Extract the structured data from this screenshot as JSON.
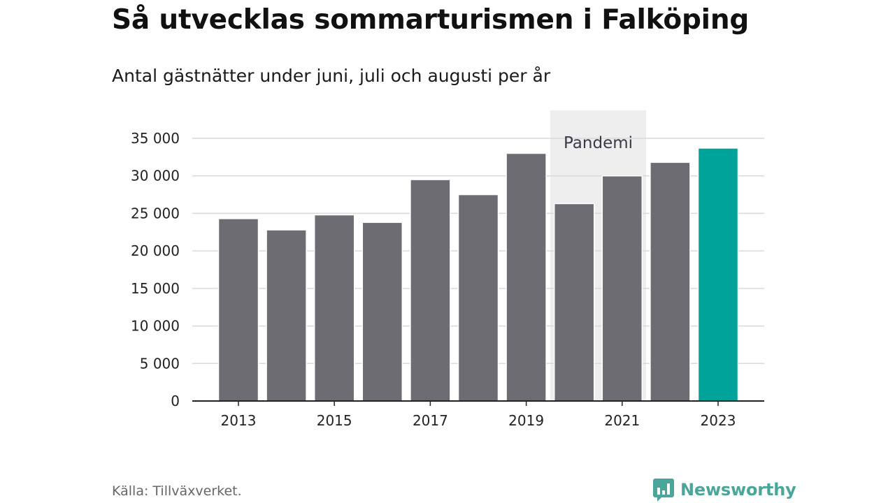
{
  "header": {
    "title": "Så utvecklas sommarturismen i Falköping",
    "subtitle": "Antal gästnätter under juni, juli och augusti per år"
  },
  "footer": {
    "source": "Källa: Tillväxverket.",
    "brand": "Newsworthy"
  },
  "colors": {
    "bar": "#6d6c72",
    "highlight_bar": "#00a39a",
    "shade": "#eeeeee",
    "brand": "#4aa59a"
  },
  "icons": {
    "logo": "speech-bubble-bar-chart-icon"
  },
  "chart_data": {
    "type": "bar",
    "categories": [
      "2013",
      "2014",
      "2015",
      "2016",
      "2017",
      "2018",
      "2019",
      "2020",
      "2021",
      "2022",
      "2023"
    ],
    "values": [
      24300,
      22800,
      24800,
      23800,
      29500,
      27500,
      33000,
      26300,
      30000,
      31800,
      33700
    ],
    "highlight_category": "2023",
    "x_tick_labels": [
      "2013",
      "2015",
      "2017",
      "2019",
      "2021",
      "2023"
    ],
    "y_ticks": [
      0,
      5000,
      10000,
      15000,
      20000,
      25000,
      30000,
      35000
    ],
    "y_tick_labels": [
      "0",
      "5 000",
      "10 000",
      "15 000",
      "20 000",
      "25 000",
      "30 000",
      "35 000"
    ],
    "ylim": [
      0,
      35000
    ],
    "grid": true,
    "annotation": {
      "label": "Pandemi",
      "from": "2020",
      "to": "2021"
    }
  }
}
